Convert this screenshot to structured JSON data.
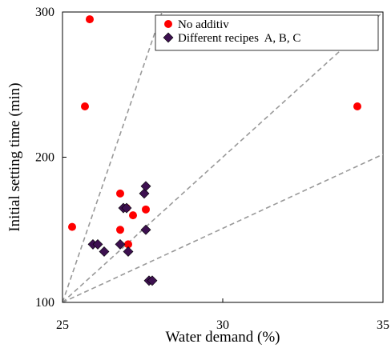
{
  "chart_data": {
    "type": "scatter",
    "xlabel": "Water demand (%)",
    "ylabel": "Initial setting time (min)",
    "xlim": [
      25,
      35
    ],
    "ylim": [
      100,
      300
    ],
    "x_ticks": [
      "25",
      "30",
      "35"
    ],
    "y_ticks": [
      "100",
      "200",
      "300"
    ],
    "grid": false,
    "legend_position": "top-right",
    "series": [
      {
        "name": "No additiv",
        "marker": "circle",
        "color": "#ff0000",
        "points": [
          [
            25.85,
            295
          ],
          [
            25.7,
            235
          ],
          [
            25.3,
            152
          ],
          [
            26.8,
            175
          ],
          [
            26.8,
            150
          ],
          [
            27.0,
            165
          ],
          [
            27.2,
            160
          ],
          [
            27.6,
            164
          ],
          [
            27.05,
            140
          ],
          [
            34.2,
            235
          ]
        ]
      },
      {
        "name": "Different recipes  A, B, C",
        "marker": "diamond",
        "color": "#3d1050",
        "points": [
          [
            25.95,
            140
          ],
          [
            26.1,
            140
          ],
          [
            26.3,
            135
          ],
          [
            26.8,
            140
          ],
          [
            27.05,
            135
          ],
          [
            26.9,
            165
          ],
          [
            27.0,
            165
          ],
          [
            27.55,
            175
          ],
          [
            27.6,
            180
          ],
          [
            27.6,
            150
          ],
          [
            27.7,
            115
          ],
          [
            27.8,
            115
          ]
        ]
      }
    ],
    "reference_lines": [
      {
        "from": [
          25,
          100
        ],
        "to": [
          30.2,
          435
        ]
      },
      {
        "from": [
          25,
          100
        ],
        "to": [
          35,
          300
        ]
      },
      {
        "from": [
          25,
          100
        ],
        "to": [
          35,
          202
        ]
      }
    ]
  }
}
